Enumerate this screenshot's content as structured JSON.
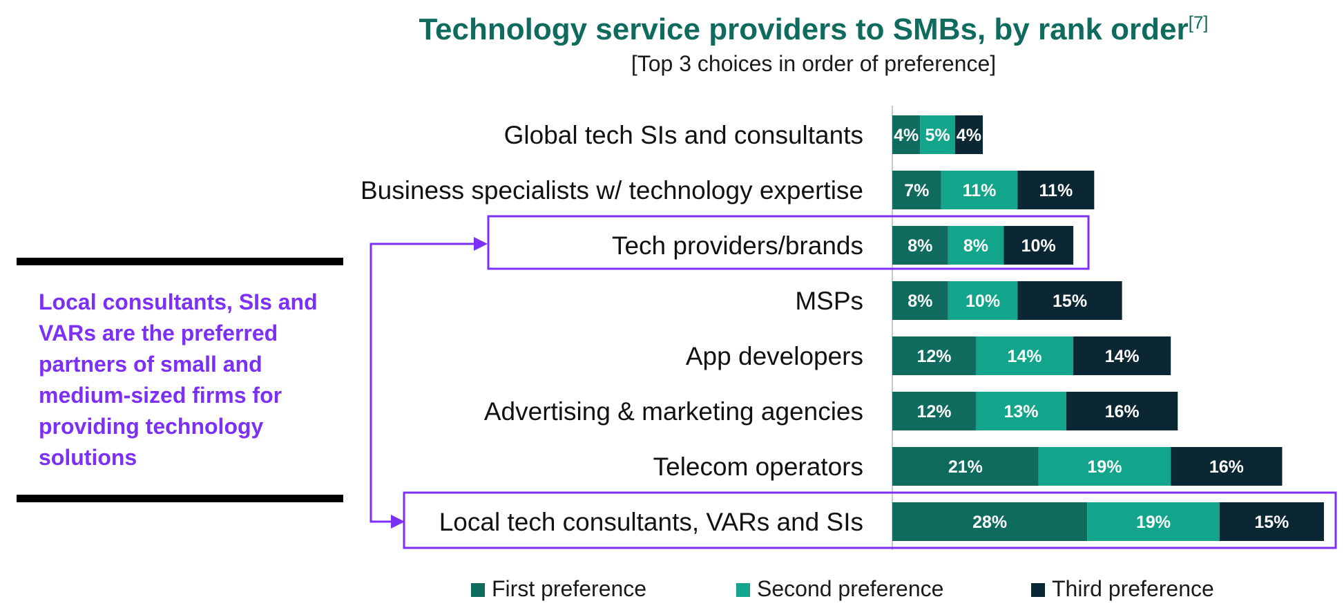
{
  "title": "Technology service providers to SMBs, by rank order",
  "title_ref": "[7]",
  "subtitle": "[Top 3 choices in order of preference]",
  "callout": "Local consultants, SIs and VARs are the preferred partners of small and medium-sized firms for providing technology solutions",
  "colors": {
    "first": "#0e6b5e",
    "second": "#12a58b",
    "third": "#0b2733",
    "highlight": "#7b2ff7"
  },
  "highlighted_categories": [
    "Tech providers/brands",
    "Local tech consultants, VARs and SIs"
  ],
  "chart_data": {
    "type": "bar",
    "orientation": "horizontal",
    "stacked": true,
    "title": "Technology service providers to SMBs, by rank order",
    "subtitle": "[Top 3 choices in order of preference]",
    "legend_position": "bottom",
    "categories": [
      "Global tech SIs and consultants",
      "Business specialists w/ technology expertise",
      "Tech providers/brands",
      "MSPs",
      "App developers",
      "Advertising & marketing agencies",
      "Telecom operators",
      "Local tech consultants, VARs and SIs"
    ],
    "series": [
      {
        "name": "First preference",
        "values": [
          4,
          7,
          8,
          8,
          12,
          12,
          21,
          28
        ]
      },
      {
        "name": "Second preference",
        "values": [
          5,
          11,
          8,
          10,
          14,
          13,
          19,
          19
        ]
      },
      {
        "name": "Third preference",
        "values": [
          4,
          11,
          10,
          15,
          14,
          16,
          16,
          15
        ]
      }
    ],
    "data_labels": [
      [
        "4%",
        "7%",
        "8%",
        "8%",
        "12%",
        "12%",
        "21%",
        "28%"
      ],
      [
        "5%",
        "11%",
        "8%",
        "10%",
        "14%",
        "13%",
        "19%",
        "19%"
      ],
      [
        "4%",
        "11%",
        "10%",
        "15%",
        "14%",
        "16%",
        "16%",
        "15%"
      ]
    ]
  }
}
